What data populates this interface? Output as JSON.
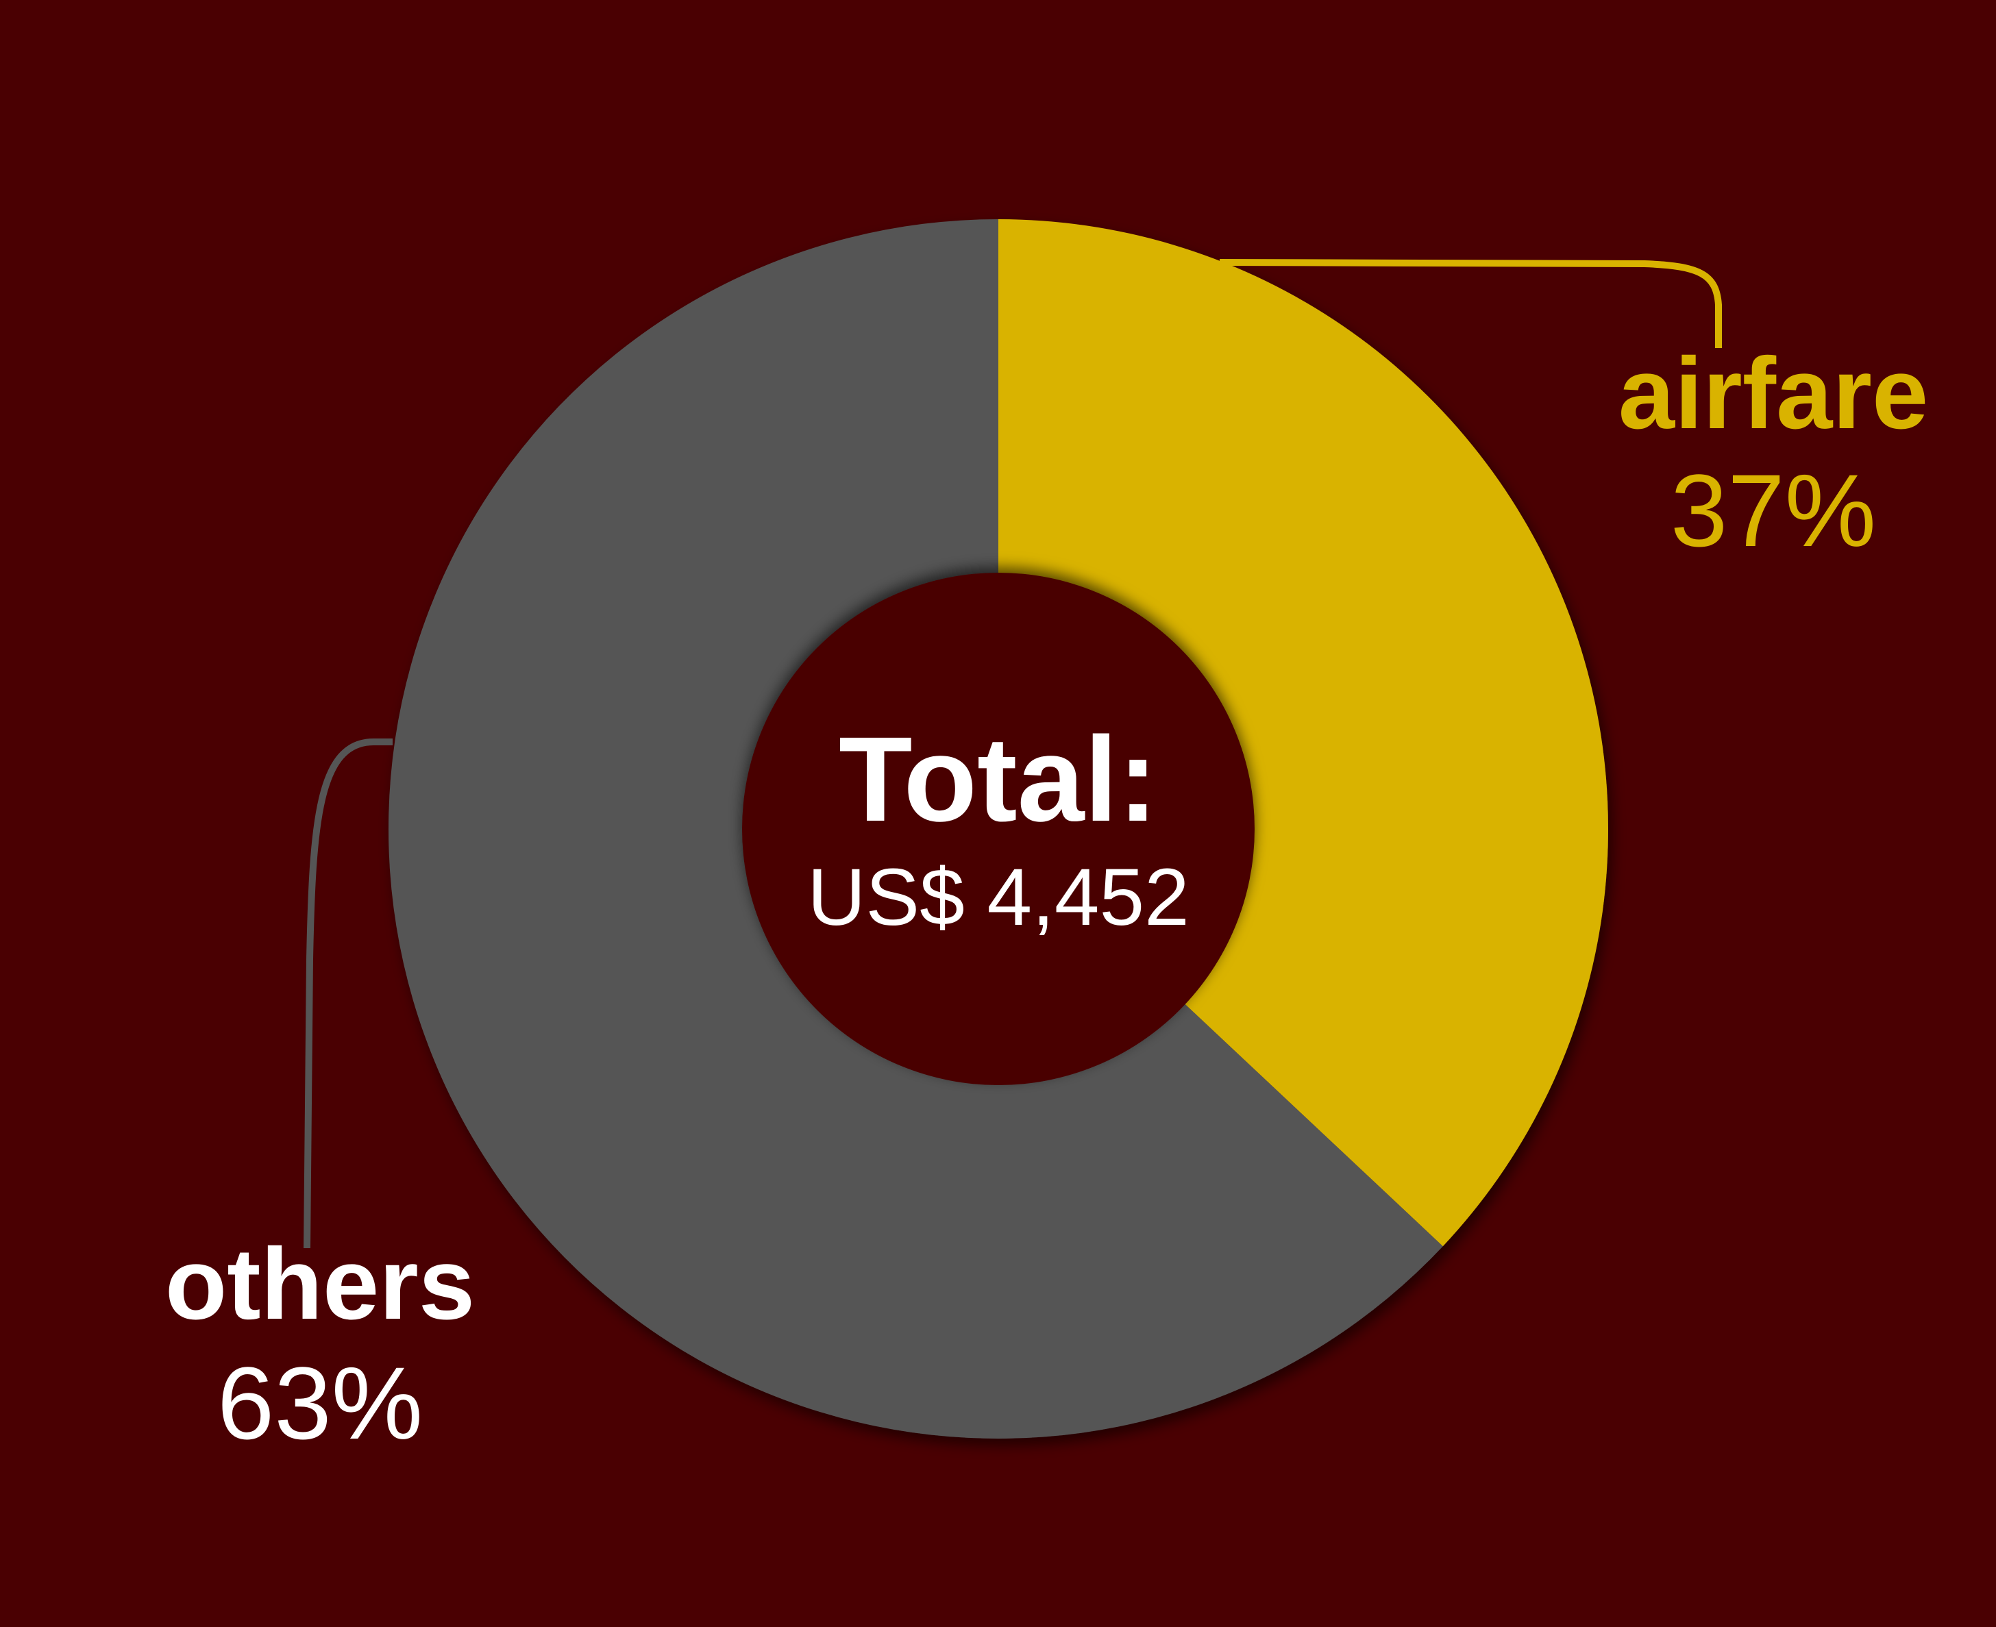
{
  "chart_data": {
    "type": "pie",
    "variant": "donut",
    "slices": [
      {
        "label": "airfare",
        "percent_label": "37%",
        "value": 37,
        "color": "#d9b300"
      },
      {
        "label": "others",
        "percent_label": "63%",
        "value": 63,
        "color": "#555555"
      }
    ],
    "center": {
      "title": "Total:",
      "value_text": "US$ 4,452"
    },
    "background_color": "#4a0002",
    "legend": "none",
    "label_placement": "outside-with-leader-lines"
  }
}
